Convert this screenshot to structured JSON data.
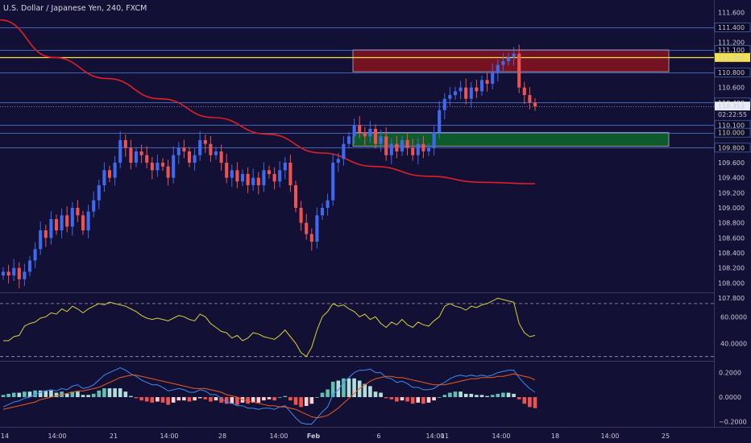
{
  "header": {
    "title": "U.S. Dollar / Japanese Yen, 240, FXCM"
  },
  "colors": {
    "background": "#131035",
    "up_candle": "#3f69ee",
    "down_candle": "#ef5350",
    "ma_line": "#e01e28",
    "hline_blue": "#5b7fd6",
    "hline_yellow": "#f4e24a",
    "zone_red": "#7a1320",
    "zone_green": "#0f5e2a",
    "rsi_line": "#d9cf3a",
    "macd_line": "#3a8bf2",
    "signal_line": "#ea5b20",
    "hist_pos": "#5fc1b4",
    "hist_neg": "#ef5350"
  },
  "chart_data": [
    {
      "type": "candlestick",
      "title": "U.S. Dollar / Japanese Yen, 240, FXCM",
      "ylim": [
        107.8,
        111.7
      ],
      "y_ticks": [
        111.6,
        111.4,
        111.2,
        111.1,
        111.0,
        110.8,
        110.6,
        110.4,
        110.353,
        110.1,
        110.0,
        109.8,
        109.6,
        109.4,
        109.2,
        109.0,
        108.8,
        108.6,
        108.4,
        108.2,
        108.0,
        107.8
      ],
      "y_tick_labels": [
        "111.600",
        "111.400",
        "111.200",
        "111.100",
        "111.000",
        "110.800",
        "110.600",
        "110.400",
        "110.353",
        "110.100",
        "110.000",
        "109.800",
        "109.600",
        "109.400",
        "109.200",
        "109.000",
        "108.800",
        "108.600",
        "108.400",
        "108.200",
        "108.000",
        "107.800"
      ],
      "x_tick_labels": [
        "14",
        "14:00",
        "21",
        "14:00",
        "28",
        "14:00",
        "Feb",
        "6",
        "14:00",
        "11",
        "14:00",
        "18",
        "14:00",
        "25"
      ],
      "countdown": "02:22:55",
      "horizontal_lines": [
        {
          "price": 111.4,
          "style": "blue"
        },
        {
          "price": 111.1,
          "style": "blue"
        },
        {
          "price": 111.0,
          "style": "yellow"
        },
        {
          "price": 110.8,
          "style": "blue"
        },
        {
          "price": 110.4,
          "style": "blue"
        },
        {
          "price": 110.353,
          "style": "dotted"
        },
        {
          "price": 110.1,
          "style": "blue"
        },
        {
          "price": 110.0,
          "style": "blue"
        },
        {
          "price": 109.8,
          "style": "blue"
        }
      ],
      "zones": [
        {
          "name": "resistance",
          "from": 110.81,
          "to": 111.1,
          "x_start": 0.72,
          "x_end": 1.0
        },
        {
          "name": "support",
          "from": 109.82,
          "to": 110.0,
          "x_start": 0.72,
          "x_end": 1.0
        }
      ],
      "closes": [
        108.15,
        108.1,
        108.2,
        108.05,
        108.15,
        108.3,
        108.45,
        108.7,
        108.6,
        108.85,
        108.7,
        108.9,
        108.75,
        109.0,
        108.9,
        108.7,
        108.95,
        109.1,
        109.3,
        109.5,
        109.4,
        109.6,
        109.9,
        109.8,
        109.6,
        109.75,
        109.7,
        109.6,
        109.5,
        109.6,
        109.55,
        109.4,
        109.7,
        109.8,
        109.75,
        109.6,
        109.7,
        109.9,
        109.85,
        109.7,
        109.75,
        109.6,
        109.4,
        109.5,
        109.35,
        109.45,
        109.3,
        109.4,
        109.3,
        109.5,
        109.45,
        109.35,
        109.5,
        109.6,
        109.3,
        109.0,
        108.8,
        108.65,
        108.55,
        108.9,
        109.0,
        109.1,
        109.6,
        109.65,
        109.85,
        109.95,
        110.1,
        110.0,
        109.95,
        110.05,
        109.85,
        109.95,
        109.7,
        109.85,
        109.75,
        109.9,
        109.8,
        109.7,
        109.85,
        109.75,
        109.8,
        110.0,
        110.3,
        110.45,
        110.5,
        110.55,
        110.6,
        110.45,
        110.6,
        110.55,
        110.7,
        110.65,
        110.8,
        110.9,
        110.95,
        111.0,
        111.05,
        110.6,
        110.5,
        110.4,
        110.35
      ],
      "ma_points": [
        [
          0,
          111.5
        ],
        [
          0.1,
          111.0
        ],
        [
          0.2,
          110.72
        ],
        [
          0.3,
          110.45
        ],
        [
          0.4,
          110.2
        ],
        [
          0.5,
          109.98
        ],
        [
          0.6,
          109.73
        ],
        [
          0.7,
          109.55
        ],
        [
          0.8,
          109.42
        ],
        [
          0.9,
          109.34
        ],
        [
          1.0,
          109.32
        ]
      ]
    },
    {
      "type": "line",
      "name": "RSI",
      "ylim": [
        28,
        76
      ],
      "y_ticks": [
        60.0,
        40.0
      ],
      "y_tick_labels": [
        "60.0000",
        "40.0000"
      ],
      "levels": [
        70,
        30
      ],
      "values": [
        42,
        42,
        45,
        46,
        53,
        55,
        56,
        59,
        60,
        63,
        62,
        66,
        64,
        68,
        66,
        63,
        66,
        68,
        70,
        69,
        71,
        70,
        69,
        68,
        66,
        64,
        61,
        59,
        58,
        59,
        58,
        57,
        59,
        61,
        60,
        58,
        57,
        62,
        60,
        55,
        52,
        49,
        48,
        44,
        46,
        42,
        44,
        48,
        47,
        45,
        44,
        43,
        46,
        50,
        45,
        40,
        33,
        30,
        37,
        50,
        60,
        64,
        70,
        68,
        69,
        66,
        64,
        60,
        62,
        58,
        60,
        55,
        52,
        56,
        54,
        58,
        54,
        52,
        56,
        54,
        53,
        57,
        60,
        68,
        70,
        68,
        67,
        65,
        68,
        67,
        69,
        70,
        72,
        74,
        73,
        72,
        71,
        55,
        48,
        45,
        46
      ]
    },
    {
      "type": "bar",
      "name": "MACD",
      "ylim": [
        -0.23,
        0.27
      ],
      "y_ticks": [
        0.2,
        0.0,
        -0.2
      ],
      "y_tick_labels": [
        "0.2000",
        "0.0000",
        "−0.2000"
      ],
      "macd": [
        -0.08,
        -0.06,
        -0.04,
        -0.03,
        -0.01,
        0.0,
        0.02,
        0.04,
        0.05,
        0.06,
        0.05,
        0.07,
        0.06,
        0.09,
        0.1,
        0.07,
        0.08,
        0.1,
        0.14,
        0.18,
        0.2,
        0.22,
        0.24,
        0.22,
        0.19,
        0.17,
        0.14,
        0.12,
        0.1,
        0.1,
        0.08,
        0.05,
        0.06,
        0.07,
        0.06,
        0.04,
        0.04,
        0.06,
        0.05,
        0.02,
        0.02,
        -0.01,
        -0.04,
        -0.05,
        -0.07,
        -0.07,
        -0.09,
        -0.09,
        -0.1,
        -0.09,
        -0.09,
        -0.1,
        -0.08,
        -0.07,
        -0.12,
        -0.17,
        -0.21,
        -0.22,
        -0.22,
        -0.17,
        -0.12,
        -0.08,
        0.02,
        0.06,
        0.12,
        0.16,
        0.2,
        0.22,
        0.22,
        0.23,
        0.2,
        0.2,
        0.16,
        0.15,
        0.12,
        0.13,
        0.11,
        0.08,
        0.08,
        0.06,
        0.06,
        0.07,
        0.1,
        0.12,
        0.15,
        0.17,
        0.18,
        0.17,
        0.18,
        0.17,
        0.18,
        0.17,
        0.18,
        0.2,
        0.21,
        0.22,
        0.22,
        0.16,
        0.11,
        0.07,
        0.04
      ],
      "signal": [
        -0.1,
        -0.09,
        -0.08,
        -0.07,
        -0.06,
        -0.05,
        -0.04,
        -0.02,
        -0.01,
        0.0,
        0.01,
        0.02,
        0.03,
        0.04,
        0.05,
        0.05,
        0.06,
        0.07,
        0.08,
        0.1,
        0.12,
        0.14,
        0.16,
        0.17,
        0.18,
        0.18,
        0.17,
        0.16,
        0.15,
        0.14,
        0.13,
        0.12,
        0.11,
        0.1,
        0.09,
        0.08,
        0.07,
        0.07,
        0.07,
        0.06,
        0.05,
        0.04,
        0.02,
        0.01,
        0.0,
        -0.02,
        -0.03,
        -0.04,
        -0.05,
        -0.06,
        -0.07,
        -0.07,
        -0.08,
        -0.08,
        -0.09,
        -0.1,
        -0.12,
        -0.14,
        -0.16,
        -0.17,
        -0.16,
        -0.15,
        -0.12,
        -0.09,
        -0.05,
        -0.01,
        0.03,
        0.07,
        0.1,
        0.13,
        0.15,
        0.16,
        0.17,
        0.17,
        0.16,
        0.16,
        0.15,
        0.14,
        0.13,
        0.12,
        0.11,
        0.1,
        0.1,
        0.1,
        0.11,
        0.12,
        0.13,
        0.14,
        0.15,
        0.15,
        0.16,
        0.16,
        0.16,
        0.17,
        0.17,
        0.18,
        0.19,
        0.18,
        0.17,
        0.16,
        0.14
      ]
    }
  ]
}
